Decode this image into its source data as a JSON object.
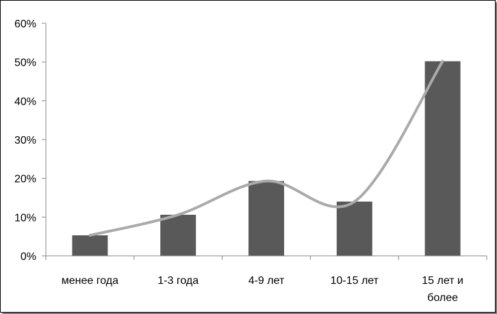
{
  "chart_data": {
    "type": "bar",
    "categories": [
      "менее года",
      "1-3 года",
      "4-9 лет",
      "10-15 лет",
      "15 лет и более"
    ],
    "category_lines": [
      [
        "менее года"
      ],
      [
        "1-3 года"
      ],
      [
        "4-9 лет"
      ],
      [
        "10-15 лет"
      ],
      [
        "15 лет и",
        "более"
      ]
    ],
    "values": [
      5.3,
      10.6,
      19.3,
      14.0,
      50.2
    ],
    "y_tick_labels": [
      "0%",
      "10%",
      "20%",
      "30%",
      "40%",
      "50%",
      "60%"
    ],
    "title": "",
    "xlabel": "",
    "ylabel": "",
    "ylim": [
      0,
      60
    ],
    "y_unit": "%",
    "grid": false,
    "legend": "none",
    "trend_line": true,
    "colors": {
      "bar": "#595959",
      "trend": "#aaaaaa",
      "axis": "#868686"
    }
  }
}
